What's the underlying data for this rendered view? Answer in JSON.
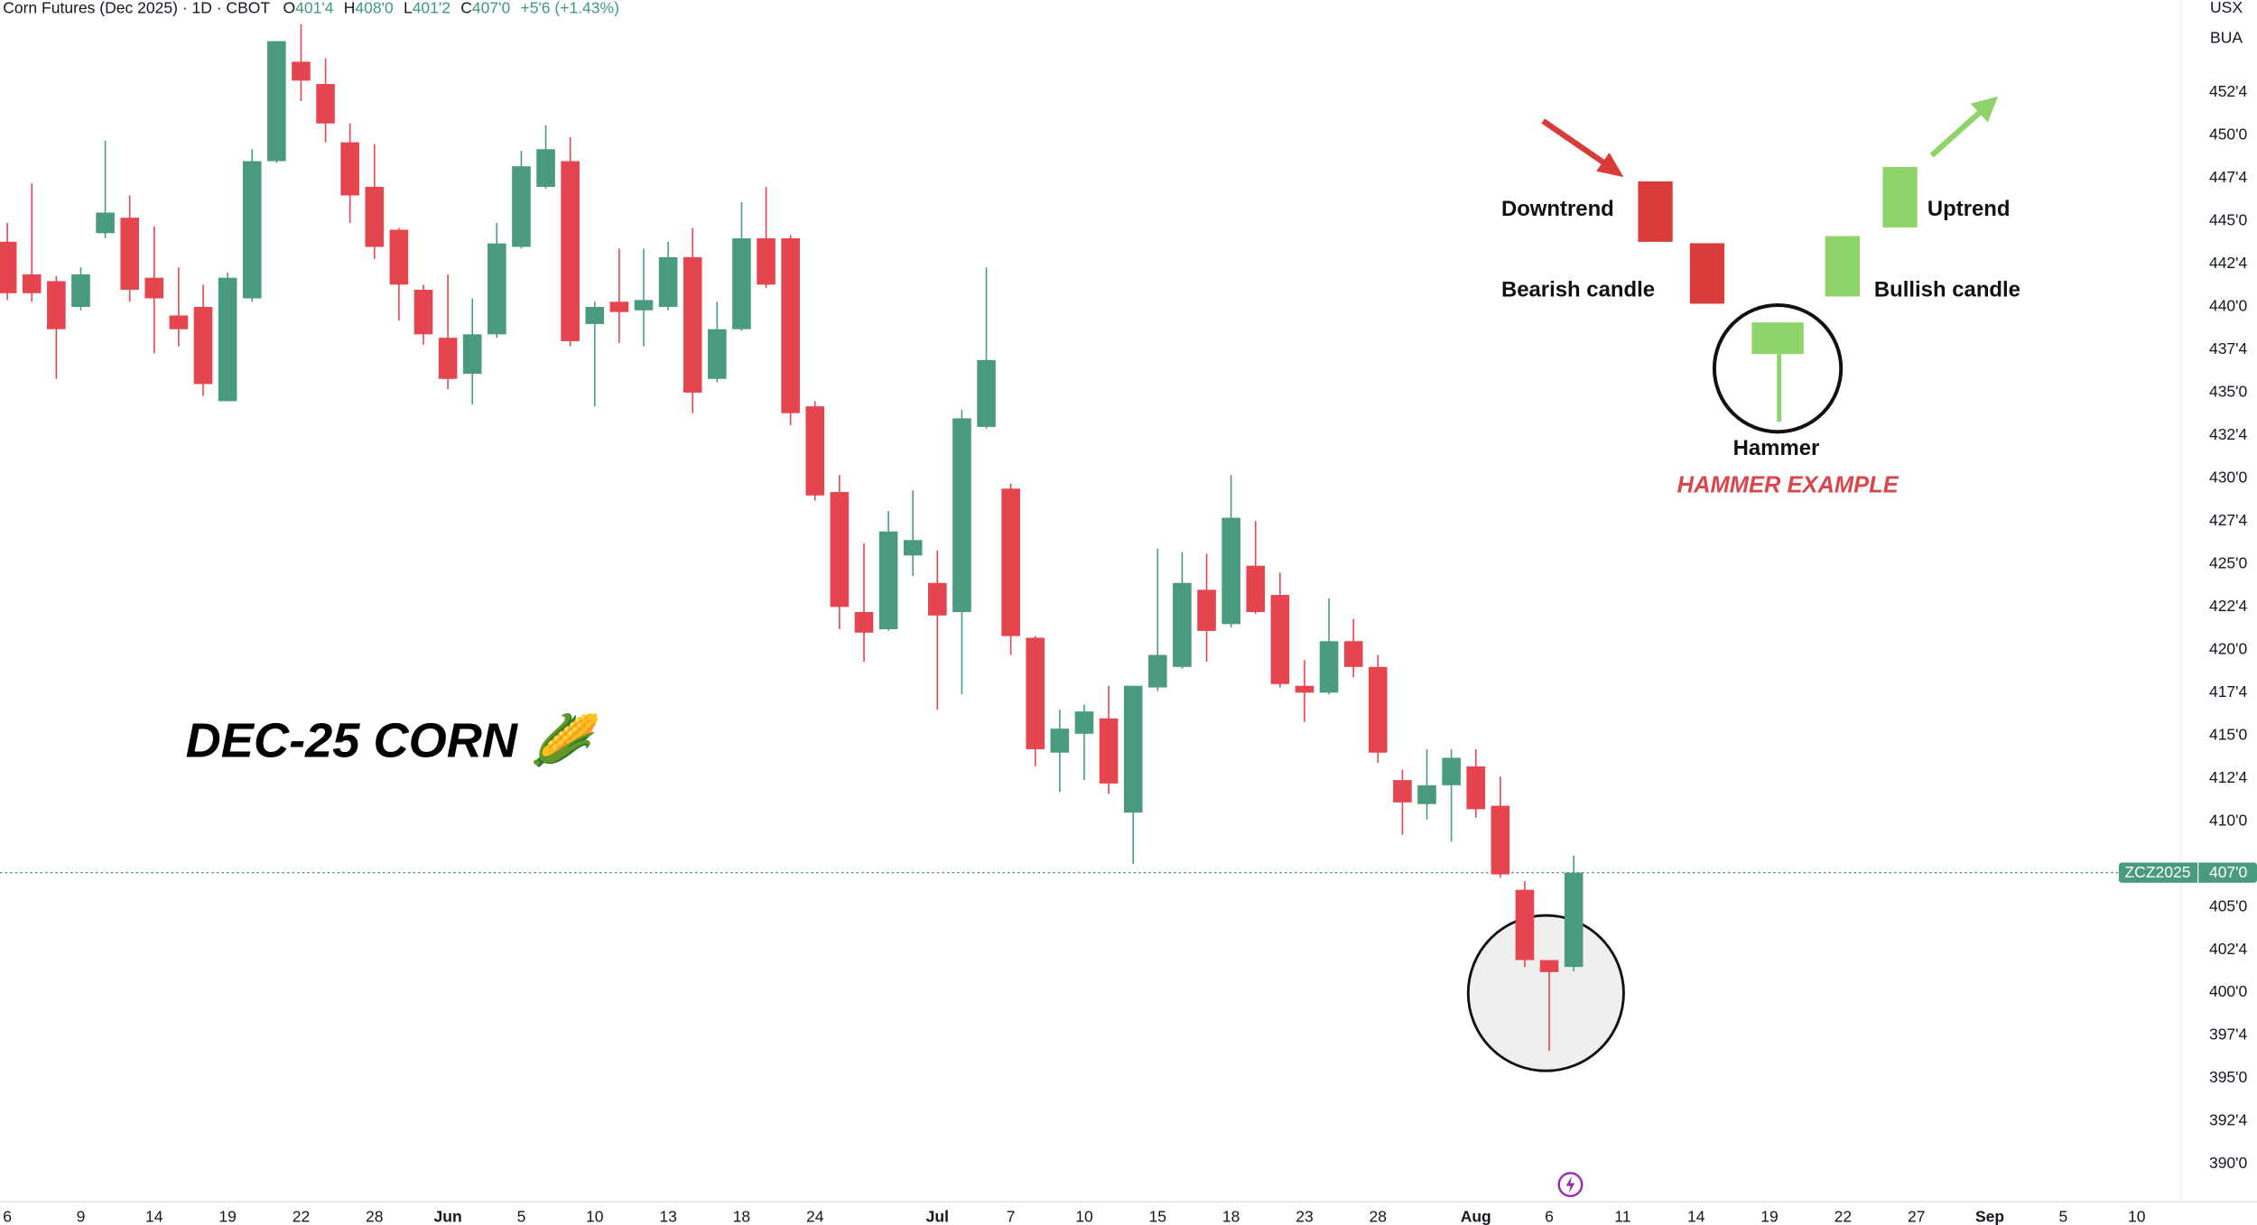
{
  "chart_data": {
    "type": "candlestick",
    "title": "Corn Futures (Dec 2025) · 1D · CBOT",
    "ohlc_header": [
      {
        "key": "O",
        "label": "401'4"
      },
      {
        "key": "H",
        "label": "408'0"
      },
      {
        "key": "L",
        "label": "401'2"
      },
      {
        "key": "C",
        "label": "407'0"
      }
    ],
    "change": "+5'6 (+1.43%)",
    "currency": "USX",
    "unit": "BUA",
    "annotation": "DEC-25 CORN 🌽",
    "price_tag": {
      "symbol": "ZCZ2025",
      "label": "407'0"
    },
    "inset": {
      "downtrend": "Downtrend",
      "bearish": "Bearish candle",
      "hammer": "Hammer",
      "bullish": "Bullish candle",
      "uptrend": "Uptrend",
      "caption": "HAMMER EXAMPLE"
    },
    "up_color": "#4a9a80",
    "down_color": "#e5454f",
    "grid": false,
    "open": [
      443.8,
      441.9,
      441.5,
      440.0,
      444.3,
      445.2,
      441.7,
      439.5,
      440.0,
      434.5,
      440.5,
      448.5,
      454.3,
      453.0,
      449.6,
      447.0,
      444.5,
      441.0,
      438.2,
      436.1,
      438.4,
      443.5,
      447.0,
      448.5,
      439.0,
      440.3,
      439.8,
      440.0,
      442.9,
      435.8,
      438.7,
      444.0,
      444.0,
      434.2,
      429.2,
      422.2,
      421.2,
      425.5,
      423.9,
      422.2,
      433.0,
      429.4,
      420.7,
      414.0,
      415.1,
      416.0,
      410.5,
      417.8,
      419.0,
      423.5,
      421.5,
      424.9,
      423.2,
      417.9,
      417.5,
      420.5,
      419.0,
      412.4,
      411.0,
      412.1,
      413.2,
      410.9,
      406.0,
      401.9,
      401.5
    ],
    "high": [
      444.9,
      447.2,
      441.8,
      442.3,
      449.7,
      446.5,
      444.7,
      442.3,
      441.3,
      442.0,
      449.2,
      455.5,
      456.5,
      454.5,
      450.7,
      449.5,
      444.6,
      441.3,
      441.9,
      440.5,
      444.9,
      449.1,
      450.6,
      449.9,
      440.3,
      443.4,
      443.4,
      443.8,
      444.6,
      440.3,
      446.1,
      447.0,
      444.2,
      434.5,
      430.2,
      426.2,
      428.1,
      429.3,
      425.8,
      434.0,
      442.3,
      429.7,
      420.8,
      416.5,
      416.8,
      417.9,
      417.9,
      425.9,
      425.7,
      425.6,
      430.2,
      427.5,
      424.5,
      419.4,
      423.0,
      421.8,
      419.7,
      413.0,
      414.2,
      414.2,
      414.2,
      412.6,
      406.5,
      401.9,
      408.0
    ],
    "low": [
      440.4,
      440.3,
      435.8,
      439.8,
      444.0,
      440.3,
      437.3,
      437.7,
      434.8,
      434.5,
      440.3,
      448.4,
      452.0,
      449.6,
      444.9,
      442.8,
      439.2,
      437.8,
      435.2,
      434.3,
      438.2,
      443.4,
      446.9,
      437.7,
      434.2,
      437.9,
      437.7,
      439.8,
      433.8,
      435.6,
      438.6,
      441.1,
      433.1,
      428.7,
      421.2,
      419.3,
      421.1,
      424.3,
      416.5,
      417.4,
      432.9,
      419.7,
      413.2,
      411.7,
      412.4,
      411.6,
      407.5,
      417.6,
      418.9,
      419.3,
      421.3,
      422.1,
      417.8,
      415.8,
      417.4,
      418.4,
      413.4,
      409.2,
      410.1,
      408.8,
      410.2,
      406.7,
      401.5,
      396.6,
      401.25
    ],
    "close": [
      440.8,
      440.8,
      438.7,
      441.9,
      445.5,
      441.0,
      440.5,
      438.7,
      435.5,
      441.7,
      448.5,
      455.5,
      453.2,
      450.7,
      446.5,
      443.5,
      441.3,
      438.4,
      435.8,
      438.4,
      443.7,
      448.2,
      449.2,
      438.0,
      440.0,
      439.7,
      440.4,
      442.9,
      435.0,
      438.7,
      444.0,
      441.3,
      433.8,
      429.0,
      422.5,
      421.0,
      426.9,
      426.4,
      422.0,
      433.5,
      436.9,
      420.8,
      414.2,
      415.4,
      416.4,
      412.2,
      417.9,
      419.7,
      423.9,
      421.1,
      427.7,
      422.2,
      418.0,
      417.5,
      420.5,
      419.0,
      414.0,
      411.1,
      412.1,
      413.7,
      410.7,
      406.9,
      401.9,
      401.2,
      407.0
    ],
    "xlim": [
      -0.3,
      88.8
    ],
    "xticks": [
      {
        "value": 0,
        "label": "6"
      },
      {
        "value": 3,
        "label": "9"
      },
      {
        "value": 6,
        "label": "14"
      },
      {
        "value": 9,
        "label": "19"
      },
      {
        "value": 12,
        "label": "22"
      },
      {
        "value": 15,
        "label": "28"
      },
      {
        "value": 18,
        "label": "Jun"
      },
      {
        "value": 21,
        "label": "5"
      },
      {
        "value": 24,
        "label": "10"
      },
      {
        "value": 27,
        "label": "13"
      },
      {
        "value": 30,
        "label": "18"
      },
      {
        "value": 33,
        "label": "24"
      },
      {
        "value": 38,
        "label": "Jul"
      },
      {
        "value": 41,
        "label": "7"
      },
      {
        "value": 44,
        "label": "10"
      },
      {
        "value": 47,
        "label": "15"
      },
      {
        "value": 50,
        "label": "18"
      },
      {
        "value": 53,
        "label": "23"
      },
      {
        "value": 56,
        "label": "28"
      },
      {
        "value": 60,
        "label": "Aug"
      },
      {
        "value": 63,
        "label": "6"
      },
      {
        "value": 66,
        "label": "11"
      },
      {
        "value": 69,
        "label": "14"
      },
      {
        "value": 72,
        "label": "19"
      },
      {
        "value": 75,
        "label": "22"
      },
      {
        "value": 78,
        "label": "27"
      },
      {
        "value": 81,
        "label": "Sep"
      },
      {
        "value": 84,
        "label": "5"
      },
      {
        "value": 87,
        "label": "10"
      }
    ],
    "ylim": [
      387.8,
      457.9
    ],
    "yticks": [
      {
        "value": 390,
        "label": "390'0"
      },
      {
        "value": 392.5,
        "label": "392'4"
      },
      {
        "value": 395,
        "label": "395'0"
      },
      {
        "value": 397.5,
        "label": "397'4"
      },
      {
        "value": 400,
        "label": "400'0"
      },
      {
        "value": 402.5,
        "label": "402'4"
      },
      {
        "value": 405,
        "label": "405'0"
      },
      {
        "value": 410,
        "label": "410'0"
      },
      {
        "value": 412.5,
        "label": "412'4"
      },
      {
        "value": 415,
        "label": "415'0"
      },
      {
        "value": 417.5,
        "label": "417'4"
      },
      {
        "value": 420,
        "label": "420'0"
      },
      {
        "value": 422.5,
        "label": "422'4"
      },
      {
        "value": 425,
        "label": "425'0"
      },
      {
        "value": 427.5,
        "label": "427'4"
      },
      {
        "value": 430,
        "label": "430'0"
      },
      {
        "value": 432.5,
        "label": "432'4"
      },
      {
        "value": 435,
        "label": "435'0"
      },
      {
        "value": 437.5,
        "label": "437'4"
      },
      {
        "value": 440,
        "label": "440'0"
      },
      {
        "value": 442.5,
        "label": "442'4"
      },
      {
        "value": 445,
        "label": "445'0"
      },
      {
        "value": 447.5,
        "label": "447'4"
      },
      {
        "value": 450,
        "label": "450'0"
      },
      {
        "value": 452.5,
        "label": "452'4"
      }
    ]
  }
}
